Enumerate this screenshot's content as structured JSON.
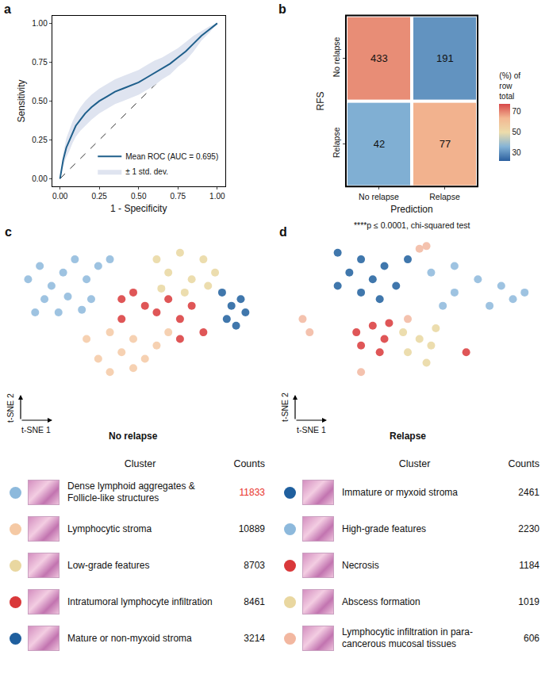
{
  "chart_data": [
    {
      "panel": "a",
      "type": "line",
      "xlabel": "1 - Specificity",
      "ylabel": "Sensitivity",
      "x": [
        0,
        0.02,
        0.04,
        0.06,
        0.08,
        0.1,
        0.13,
        0.16,
        0.2,
        0.25,
        0.3,
        0.35,
        0.4,
        0.45,
        0.5,
        0.55,
        0.6,
        0.65,
        0.7,
        0.75,
        0.8,
        0.85,
        0.9,
        0.95,
        1
      ],
      "series": [
        {
          "name": "Mean ROC (AUC = 0.695)",
          "color": "#1f5f8b",
          "values": [
            0,
            0.12,
            0.2,
            0.25,
            0.3,
            0.34,
            0.38,
            0.42,
            0.46,
            0.5,
            0.53,
            0.56,
            0.58,
            0.6,
            0.62,
            0.65,
            0.68,
            0.71,
            0.74,
            0.78,
            0.82,
            0.87,
            0.92,
            0.96,
            1
          ]
        }
      ],
      "band": {
        "name": "± 1 std. dev.",
        "color": "#dfe4f0",
        "lower": [
          0,
          0.08,
          0.14,
          0.18,
          0.23,
          0.27,
          0.31,
          0.34,
          0.38,
          0.42,
          0.45,
          0.48,
          0.5,
          0.52,
          0.54,
          0.57,
          0.6,
          0.64,
          0.67,
          0.72,
          0.76,
          0.82,
          0.89,
          0.94,
          1
        ],
        "upper": [
          0,
          0.16,
          0.26,
          0.32,
          0.37,
          0.41,
          0.46,
          0.5,
          0.54,
          0.58,
          0.61,
          0.64,
          0.66,
          0.68,
          0.7,
          0.73,
          0.76,
          0.78,
          0.81,
          0.84,
          0.88,
          0.92,
          0.95,
          0.98,
          1
        ]
      },
      "reference": {
        "x": [
          0,
          1
        ],
        "values": [
          0,
          1
        ],
        "line_style": "dashed",
        "color": "#333333"
      },
      "xlim": [
        -0.05,
        1.05
      ],
      "ylim": [
        -0.05,
        1.05
      ],
      "xticks": [
        {
          "value": 0,
          "label": "0.00"
        },
        {
          "value": 0.25,
          "label": "0.25"
        },
        {
          "value": 0.5,
          "label": "0.50"
        },
        {
          "value": 0.75,
          "label": "0.75"
        },
        {
          "value": 1,
          "label": "1.00"
        }
      ],
      "yticks": [
        {
          "value": 0,
          "label": "0.00"
        },
        {
          "value": 0.25,
          "label": "0.25"
        },
        {
          "value": 0.5,
          "label": "0.50"
        },
        {
          "value": 0.75,
          "label": "0.75"
        },
        {
          "value": 1,
          "label": "1.00"
        }
      ],
      "grid": false,
      "legend": "bottom right"
    },
    {
      "panel": "b",
      "type": "heatmap",
      "xlabel": "Prediction",
      "ylabel": "RFS",
      "x": [
        "No relapse",
        "Relapse"
      ],
      "y": [
        "No relapse",
        "Relapse"
      ],
      "values": [
        [
          433,
          191
        ],
        [
          42,
          77
        ]
      ],
      "row_percent": [
        [
          69.4,
          30.6
        ],
        [
          35.3,
          64.7
        ]
      ],
      "colorbar_title": "(%) of row total",
      "zlim": [
        22,
        78
      ],
      "zticks": [
        30,
        50,
        70
      ],
      "data_labels": true,
      "caption": "****p ≤ 0.0001, chi-squared test"
    },
    {
      "panel": "c",
      "type": "scatter",
      "title": "No relapse",
      "xlabel": "t-SNE 1",
      "ylabel": "t-SNE 2",
      "tick_labels": false,
      "xlim": [
        -5,
        105
      ],
      "ylim": [
        -5,
        105
      ],
      "table_headers": [
        "Cluster",
        "Counts"
      ],
      "series": [
        {
          "name": "Dense lymphoid aggregates & Follicle-like structures",
          "color": "#8db9dc",
          "count": 11833,
          "count_color": "#e8322b",
          "x": [
            5,
            10,
            15,
            20,
            25,
            30,
            12,
            22,
            32,
            35,
            8,
            18,
            28,
            40
          ],
          "values": [
            75,
            85,
            70,
            80,
            90,
            75,
            60,
            62,
            60,
            85,
            50,
            50,
            52,
            90
          ]
        },
        {
          "name": "Lymphocytic stroma",
          "color": "#f5c9a4",
          "count": 10889,
          "x": [
            30,
            40,
            50,
            45,
            35,
            55,
            60,
            50,
            65,
            40
          ],
          "values": [
            30,
            35,
            30,
            20,
            15,
            15,
            25,
            8,
            35,
            5
          ]
        },
        {
          "name": "Low-grade features",
          "color": "#e9d7a0",
          "count": 8703,
          "x": [
            60,
            70,
            80,
            65,
            75,
            85,
            62,
            72,
            82
          ],
          "values": [
            90,
            95,
            90,
            80,
            75,
            80,
            68,
            65,
            70
          ]
        },
        {
          "name": "Intratumoral lymphocyte infiltration",
          "color": "#d9383a",
          "count": 8461,
          "x": [
            45,
            50,
            55,
            45,
            60,
            70,
            75,
            70,
            80,
            65
          ],
          "values": [
            60,
            65,
            55,
            45,
            50,
            45,
            55,
            30,
            35,
            60
          ]
        },
        {
          "name": "Mature or non-myxoid stroma",
          "color": "#1f5f9e",
          "count": 3214,
          "x": [
            88,
            92,
            96,
            90,
            98,
            94
          ],
          "values": [
            65,
            55,
            60,
            45,
            50,
            40
          ]
        }
      ]
    },
    {
      "panel": "d",
      "type": "scatter",
      "title": "Relapse",
      "xlabel": "t-SNE 1",
      "ylabel": "t-SNE 2",
      "tick_labels": false,
      "xlim": [
        -5,
        105
      ],
      "ylim": [
        -5,
        105
      ],
      "table_headers": [
        "Cluster",
        "Counts"
      ],
      "series": [
        {
          "name": "Immature or myxoid stroma",
          "color": "#1f5f9e",
          "count": 2461,
          "x": [
            20,
            30,
            25,
            35,
            40,
            45,
            30,
            20,
            50,
            38
          ],
          "values": [
            95,
            90,
            80,
            75,
            85,
            70,
            65,
            70,
            90,
            60
          ]
        },
        {
          "name": "High-grade features",
          "color": "#8db9dc",
          "count": 2230,
          "x": [
            60,
            70,
            80,
            90,
            95,
            70,
            85,
            65,
            100
          ],
          "values": [
            80,
            85,
            75,
            70,
            60,
            65,
            55,
            55,
            65
          ]
        },
        {
          "name": "Necrosis",
          "color": "#d9383a",
          "count": 1184,
          "x": [
            28,
            35,
            40,
            30,
            38,
            42,
            75
          ],
          "values": [
            35,
            40,
            30,
            25,
            20,
            42,
            20
          ]
        },
        {
          "name": "Abscess formation",
          "color": "#e9d7a0",
          "count": 1019,
          "x": [
            48,
            55,
            60,
            50,
            58,
            62
          ],
          "values": [
            35,
            30,
            25,
            20,
            12,
            38
          ]
        },
        {
          "name": "Lymphocytic infiltration in para-cancerous mucosal tissues",
          "color": "#f2b7a0",
          "count": 606,
          "x": [
            5,
            8,
            55,
            58,
            30,
            50
          ],
          "values": [
            45,
            35,
            98,
            100,
            5,
            45
          ]
        }
      ]
    }
  ]
}
